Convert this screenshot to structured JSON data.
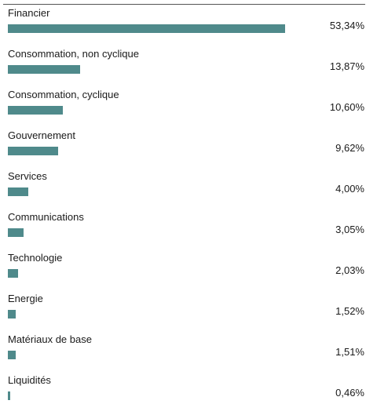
{
  "chart_data": {
    "type": "bar",
    "orientation": "horizontal",
    "categories": [
      "Financier",
      "Consommation, non cyclique",
      "Consommation, cyclique",
      "Gouvernement",
      "Services",
      "Communications",
      "Technologie",
      "Energie",
      "Matériaux de base",
      "Liquidités"
    ],
    "values": [
      53.34,
      13.87,
      10.6,
      9.62,
      4.0,
      3.05,
      2.03,
      1.52,
      1.51,
      0.46
    ],
    "value_labels": [
      "53,34%",
      "13,87%",
      "10,60%",
      "9,62%",
      "4,00%",
      "3,05%",
      "2,03%",
      "1,52%",
      "1,51%",
      "0,46%"
    ],
    "xlim": [
      0,
      53.34
    ],
    "grid": false,
    "legend": "none",
    "colors": {
      "bar": "#4f8a8b",
      "text": "#1a1a1a"
    }
  }
}
